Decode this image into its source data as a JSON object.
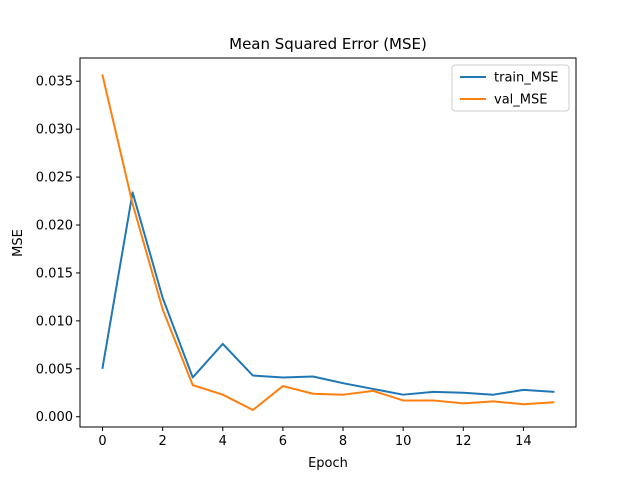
{
  "chart_data": {
    "type": "line",
    "title": "Mean Squared Error (MSE)",
    "xlabel": "Epoch",
    "ylabel": "MSE",
    "xlim": [
      -0.75,
      15.75
    ],
    "ylim": [
      -0.00107,
      0.03742
    ],
    "x_ticks": [
      0,
      2,
      4,
      6,
      8,
      10,
      12,
      14
    ],
    "x_tick_labels": [
      "0",
      "2",
      "4",
      "6",
      "8",
      "10",
      "12",
      "14"
    ],
    "y_ticks": [
      0.0,
      0.005,
      0.01,
      0.015,
      0.02,
      0.025,
      0.03,
      0.035
    ],
    "y_tick_labels": [
      "0.000",
      "0.005",
      "0.010",
      "0.015",
      "0.020",
      "0.025",
      "0.030",
      "0.035"
    ],
    "grid": false,
    "legend_position": "top-right",
    "x": [
      0,
      1,
      2,
      3,
      4,
      5,
      6,
      7,
      8,
      9,
      10,
      11,
      12,
      13,
      14,
      15
    ],
    "series": [
      {
        "name": "train_MSE",
        "color": "#1f77b4",
        "values": [
          0.0051,
          0.0234,
          0.0124,
          0.0041,
          0.0076,
          0.0043,
          0.0041,
          0.0042,
          0.0035,
          0.0029,
          0.0023,
          0.0026,
          0.0025,
          0.0023,
          0.0028,
          0.0026
        ]
      },
      {
        "name": "val_MSE",
        "color": "#ff7f0e",
        "values": [
          0.0356,
          0.0222,
          0.0112,
          0.0033,
          0.0023,
          0.0007,
          0.0032,
          0.0024,
          0.0023,
          0.0027,
          0.0017,
          0.0017,
          0.0014,
          0.0016,
          0.0013,
          0.0015
        ]
      }
    ]
  }
}
